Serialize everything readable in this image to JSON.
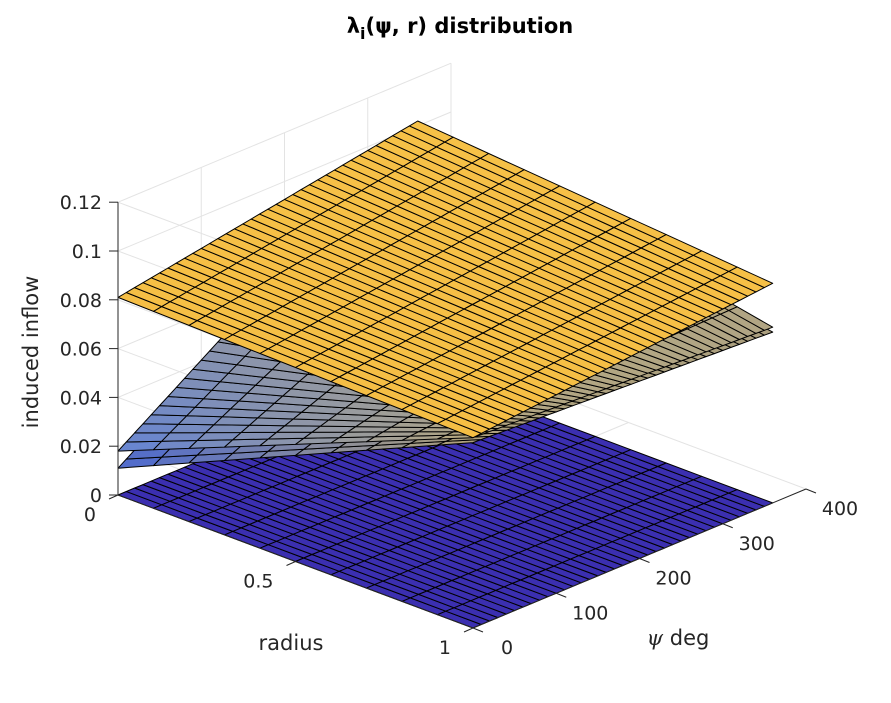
{
  "chart_data": {
    "type": "surface3d",
    "title_main": "λ",
    "title_sub": "i",
    "title_rest": "(ψ, r) distribution",
    "zlabel": "induced inflow",
    "ylabel": "radius",
    "xlabel_symbol": "ψ",
    "xlabel_text": " deg",
    "xlim": [
      0,
      400
    ],
    "ylim": [
      0,
      1
    ],
    "zlim": [
      0,
      0.12
    ],
    "x_ticks": [
      {
        "value": 0,
        "label": "0"
      },
      {
        "value": 100,
        "label": "100"
      },
      {
        "value": 200,
        "label": "200"
      },
      {
        "value": 300,
        "label": "300"
      },
      {
        "value": 400,
        "label": "400"
      }
    ],
    "y_ticks": [
      {
        "value": 0,
        "label": "0"
      },
      {
        "value": 0.5,
        "label": "0.5"
      },
      {
        "value": 1,
        "label": "1"
      }
    ],
    "z_ticks": [
      {
        "value": 0,
        "label": "0"
      },
      {
        "value": 0.02,
        "label": "0.02"
      },
      {
        "value": 0.04,
        "label": "0.04"
      },
      {
        "value": 0.06,
        "label": "0.06"
      },
      {
        "value": 0.08,
        "label": "0.08"
      },
      {
        "value": 0.1,
        "label": "0.1"
      },
      {
        "value": 0.12,
        "label": "0.12"
      }
    ],
    "grid": true,
    "psi_range": [
      0,
      360
    ],
    "psi_steps": 36,
    "r_range": [
      0,
      1
    ],
    "r_steps": 10,
    "surfaces": [
      {
        "name": "bottom",
        "color_low": "#3b2fb0",
        "color_high": "#3f37b8",
        "z_psi0_r0": 0.0,
        "z_psi0_r1": 0.0,
        "z_psi360_r0": 0.0,
        "z_psi360_r1": 0.0
      },
      {
        "name": "lower-mid",
        "color_low": "#3b5fe0",
        "color_high": "#f7cb3c",
        "z_psi0_r0": 0.011,
        "z_psi0_r1": 0.076,
        "z_psi360_r0": 0.094,
        "z_psi360_r1": 0.07
      },
      {
        "name": "upper-mid",
        "color_low": "#4a78f0",
        "color_high": "#f2c240",
        "z_psi0_r0": 0.018,
        "z_psi0_r1": 0.078,
        "z_psi360_r0": 0.101,
        "z_psi360_r1": 0.072
      },
      {
        "name": "top",
        "color_low": "#f2b53a",
        "color_high": "#f7c34a",
        "z_psi0_r0": 0.081,
        "z_psi0_r1": 0.078,
        "z_psi360_r0": 0.102,
        "z_psi360_r1": 0.09
      }
    ]
  }
}
